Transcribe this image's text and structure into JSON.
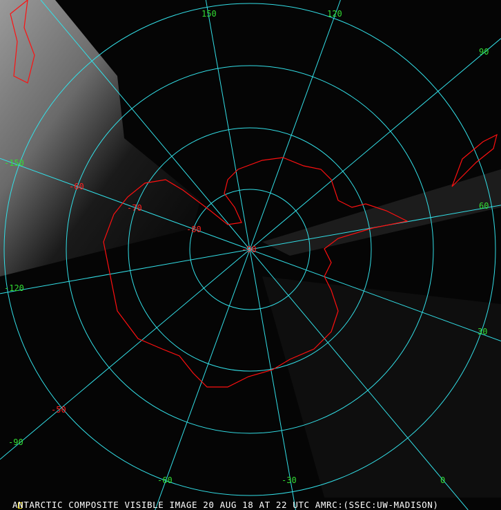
{
  "caption": "ANTARCTIC COMPOSITE VISIBLE IMAGE 20 AUG 18 AT 22 UTC AMRC:(SSEC:UW-MADISON)",
  "colors": {
    "grid": "#33e0e8",
    "coastline": "#ff1010",
    "longitude_labels": "#33dd33",
    "latitude_labels": "#ff2020",
    "caption": "#ffffff"
  },
  "projection": "south-polar-stereographic",
  "longitude_labels": [
    "150",
    "120",
    "90",
    "60",
    "30",
    "0",
    "-30",
    "-60",
    "-90",
    "-120",
    "-150"
  ],
  "latitude_labels": [
    "-90",
    "-80",
    "-70",
    "-60",
    "-50"
  ],
  "meridians": [
    180,
    150,
    120,
    90,
    60,
    30,
    0,
    -30,
    -60,
    -90,
    -120,
    -150
  ],
  "parallels": [
    -80,
    -70,
    -60,
    -50
  ]
}
